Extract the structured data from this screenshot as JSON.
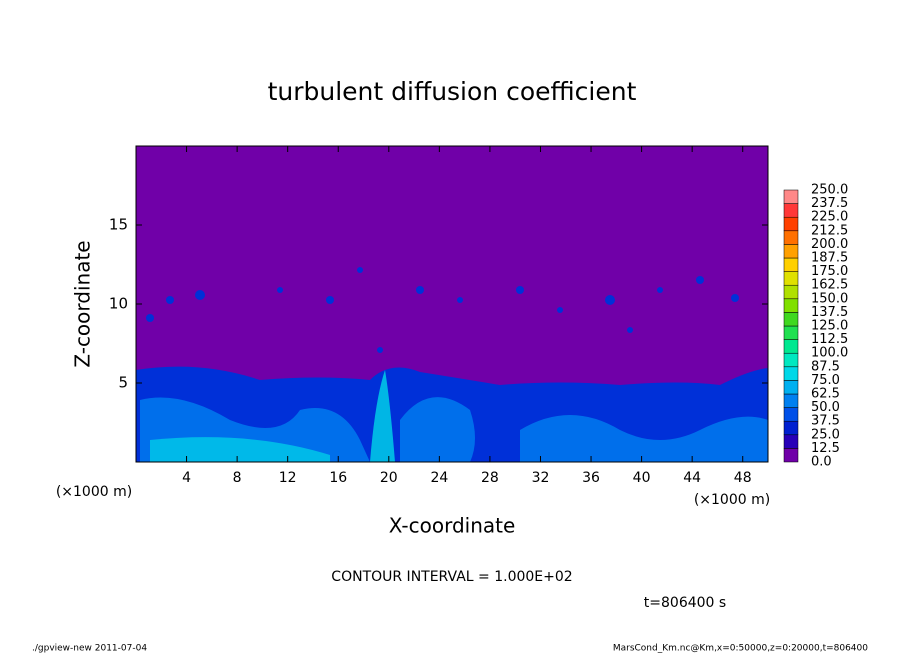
{
  "chart_data": {
    "type": "contour",
    "title": "turbulent diffusion coefficient",
    "x_label": "X-coordinate",
    "y_label": "Z-coordinate",
    "x_unit": "(×1000 m)",
    "y_unit": "(×1000 m)",
    "xlim": [
      0,
      50
    ],
    "ylim": [
      0,
      20
    ],
    "xticks": [
      4,
      8,
      12,
      16,
      20,
      24,
      28,
      32,
      36,
      40,
      44,
      48
    ],
    "yticks": [
      5,
      10,
      15
    ],
    "levels": [
      {
        "value": 0,
        "label": "0.0"
      },
      {
        "value": 12.5,
        "label": "12.5"
      },
      {
        "value": 25,
        "label": "25.0"
      },
      {
        "value": 37.5,
        "label": "37.5"
      },
      {
        "value": 50,
        "label": "50.0"
      },
      {
        "value": 62.5,
        "label": "62.5"
      },
      {
        "value": 75,
        "label": "75.0"
      },
      {
        "value": 87.5,
        "label": "87.5"
      },
      {
        "value": 100,
        "label": "100.0"
      },
      {
        "value": 112.5,
        "label": "112.5"
      },
      {
        "value": 125,
        "label": "125.0"
      },
      {
        "value": 137.5,
        "label": "137.5"
      },
      {
        "value": 150,
        "label": "150.0"
      },
      {
        "value": 162.5,
        "label": "162.5"
      },
      {
        "value": 175,
        "label": "175.0"
      },
      {
        "value": 187.5,
        "label": "187.5"
      },
      {
        "value": 200,
        "label": "200.0"
      },
      {
        "value": 212.5,
        "label": "212.5"
      },
      {
        "value": 225,
        "label": "225.0"
      },
      {
        "value": 237.5,
        "label": "237.5"
      },
      {
        "value": 250,
        "label": "250.0"
      }
    ],
    "colors": [
      "#7000a8",
      "#2800b8",
      "#0020d0",
      "#0050e8",
      "#0080f0",
      "#00b0f0",
      "#00d8e8",
      "#00e8c0",
      "#00e890",
      "#20e050",
      "#40d820",
      "#80e000",
      "#b0e000",
      "#e0e000",
      "#ffd000",
      "#ffa000",
      "#ff7000",
      "#ff4000",
      "#ff3838",
      "#ff8888"
    ],
    "contour_interval": "CONTOUR INTERVAL = 1.000E+02",
    "time": "t=806400 s",
    "footer_left": "./gpview-new  2011-07-04",
    "footer_right": "MarsCond_Km.nc@Km,x=0:50000,z=0:20000,t=806400"
  }
}
